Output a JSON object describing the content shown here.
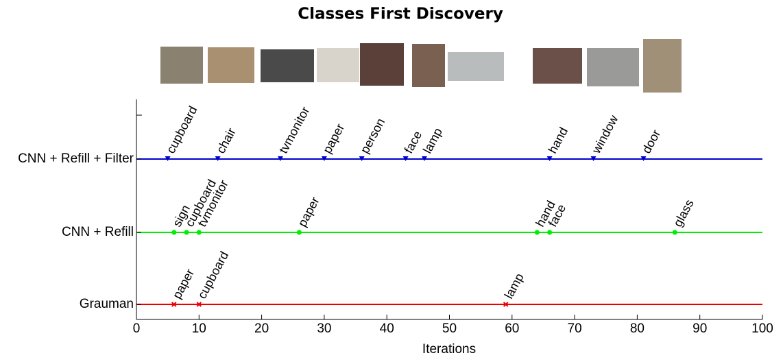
{
  "chart_data": {
    "type": "event",
    "title": "Classes First Discovery",
    "xlabel": "Iterations",
    "xlim": [
      0,
      100
    ],
    "xticks": [
      0,
      10,
      20,
      30,
      40,
      50,
      60,
      70,
      80,
      90,
      100
    ],
    "series": [
      {
        "name": "CNN + Refill + Filter",
        "color": "#0000cc",
        "marker": "triangle",
        "x": [
          5,
          13,
          23,
          30,
          36,
          43,
          46,
          66,
          73,
          81
        ],
        "labels": [
          "cupboard",
          "chair",
          "tvmonitor",
          "paper",
          "person",
          "face",
          "lamp",
          "hand",
          "window",
          "door"
        ]
      },
      {
        "name": "CNN + Refill",
        "color": "#00ee00",
        "marker": "circle",
        "x": [
          6,
          8,
          10,
          26,
          64,
          66,
          86
        ],
        "labels": [
          "sign",
          "cupboard",
          "tvmonitor",
          "paper",
          "hand",
          "face",
          "glass"
        ]
      },
      {
        "name": "Grauman",
        "color": "#ee0000",
        "marker": "x",
        "x": [
          6,
          10,
          59
        ],
        "labels": [
          "paper",
          "cupboard",
          "lamp"
        ]
      }
    ]
  }
}
